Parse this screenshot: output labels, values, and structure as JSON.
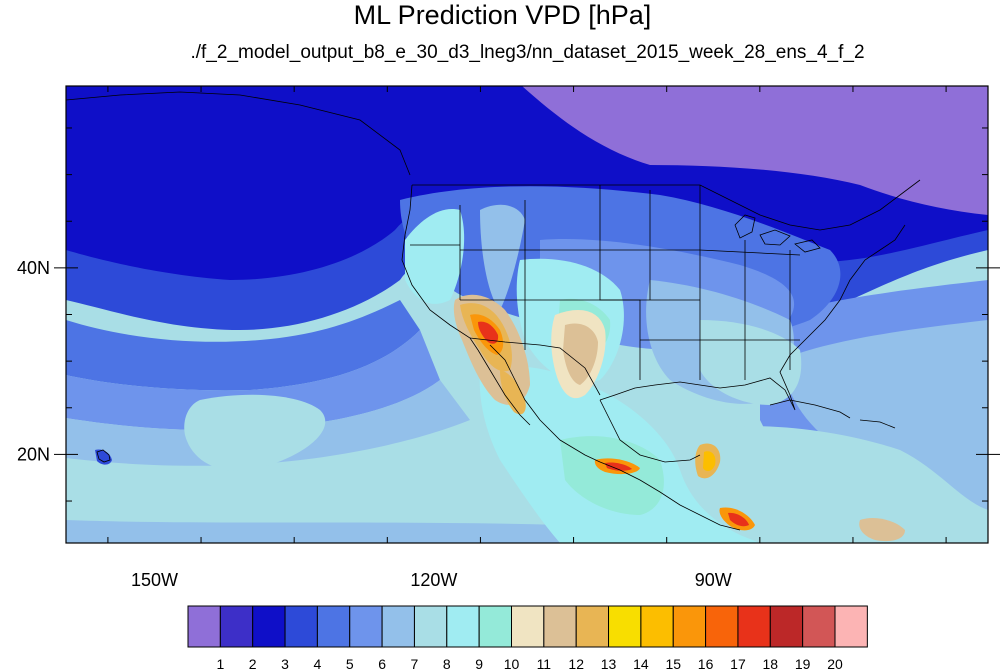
{
  "title": "ML Prediction VPD [hPa]",
  "subtitle": "./f_2_model_output_b8_e_30_d3_lneg3/nn_dataset_2015_week_28_ens_4_f_2",
  "map": {
    "lat_ticks": [
      {
        "label": "40N",
        "lat": 40
      },
      {
        "label": "20N",
        "lat": 20
      }
    ],
    "lon_ticks": [
      {
        "label": "150W",
        "lon": -150
      },
      {
        "label": "120W",
        "lon": -120
      },
      {
        "label": "90W",
        "lon": -90
      }
    ]
  },
  "colorbar": {
    "colors": [
      "#8f6fd8",
      "#3d2fc8",
      "#0f0fc8",
      "#2d4ad8",
      "#4d74e4",
      "#6e94ec",
      "#93c0ea",
      "#a9dee6",
      "#a0ecf2",
      "#94ead9",
      "#f0e4c2",
      "#dcc096",
      "#e8b554",
      "#f8de00",
      "#fcbe00",
      "#fa960a",
      "#f8640a",
      "#e8321a",
      "#bc2828",
      "#d25656",
      "#fcb4b4"
    ],
    "labels": [
      "1",
      "2",
      "3",
      "4",
      "5",
      "6",
      "7",
      "8",
      "9",
      "10",
      "11",
      "12",
      "13",
      "14",
      "15",
      "16",
      "17",
      "18",
      "19",
      "20"
    ]
  }
}
